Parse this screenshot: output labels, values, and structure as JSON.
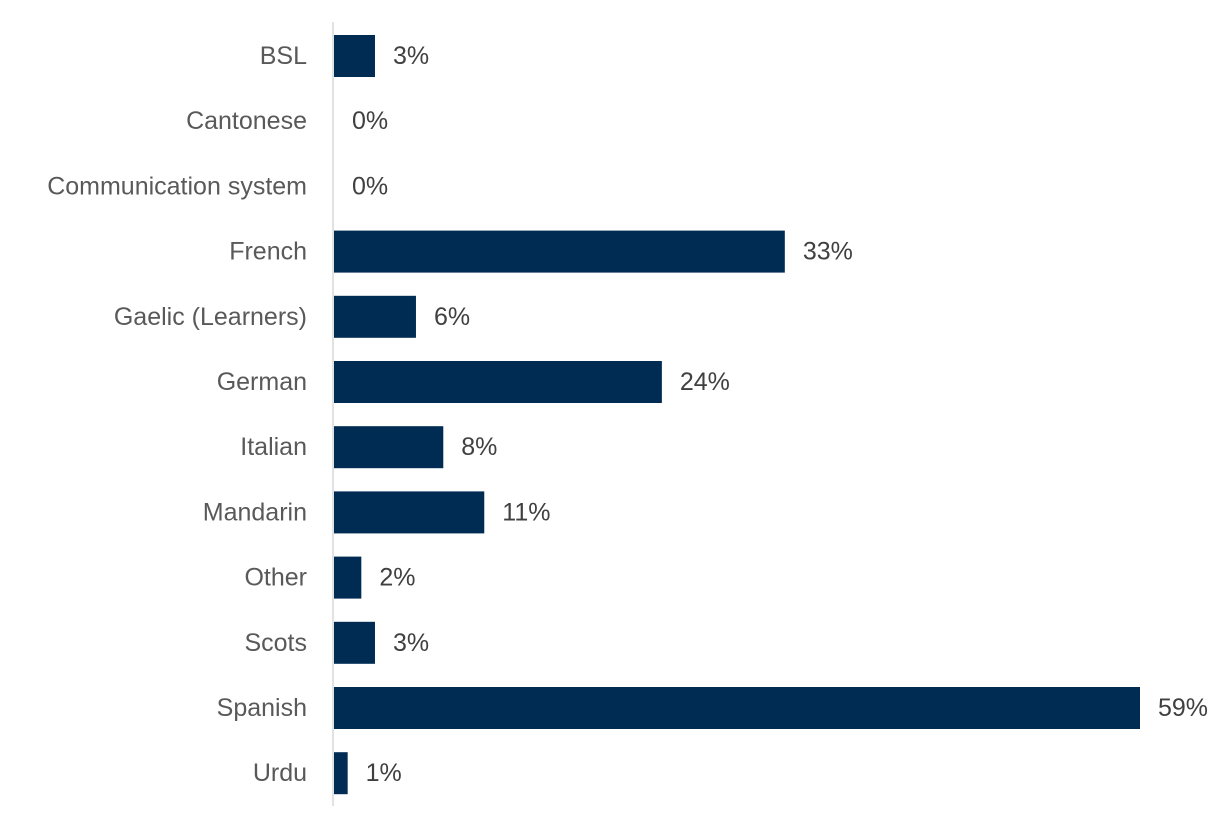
{
  "chart_data": {
    "type": "bar",
    "orientation": "horizontal",
    "title": "",
    "xlabel": "",
    "ylabel": "",
    "categories": [
      "BSL",
      "Cantonese",
      "Communication system",
      "French",
      "Gaelic (Learners)",
      "German",
      "Italian",
      "Mandarin",
      "Other",
      "Scots",
      "Spanish",
      "Urdu"
    ],
    "values": [
      3,
      0,
      0,
      33,
      6,
      24,
      8,
      11,
      2,
      3,
      59,
      1
    ],
    "data_labels": [
      "3%",
      "0%",
      "0%",
      "33%",
      "6%",
      "24%",
      "8%",
      "11%",
      "2%",
      "3%",
      "59%",
      "1%"
    ],
    "value_unit": "%",
    "xlim": [
      0,
      59
    ],
    "grid": false,
    "legend": "none",
    "bar_color": "#002b52",
    "axis_color": "#d9d9d9"
  }
}
